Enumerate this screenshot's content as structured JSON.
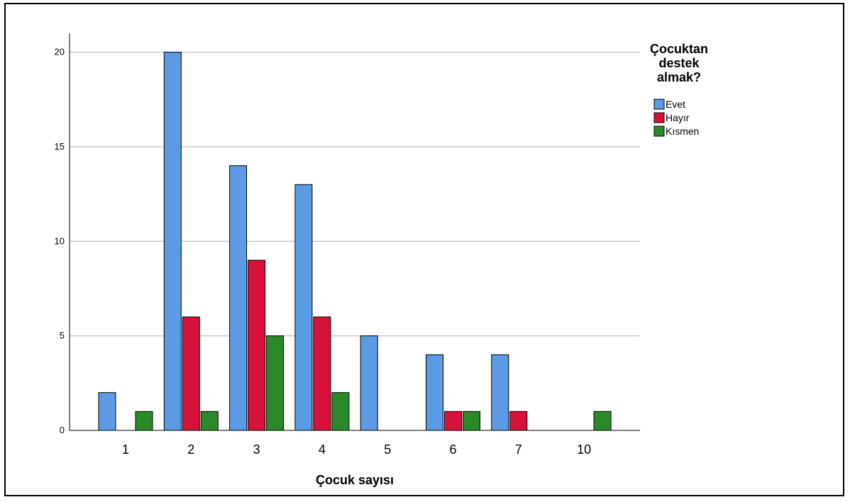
{
  "chart_data": {
    "type": "bar",
    "xlabel": "Çocuk sayısı",
    "ylabel": "",
    "categories": [
      "1",
      "2",
      "3",
      "4",
      "5",
      "6",
      "7",
      "10"
    ],
    "ylim": [
      0,
      21
    ],
    "yticks": [
      0,
      5,
      10,
      15,
      20
    ],
    "grid": true,
    "legend": {
      "title_lines": [
        "Çocuktan",
        "destek",
        "almak?"
      ],
      "placement": "right"
    },
    "series": [
      {
        "name": "Evet",
        "color": "#5b9be6",
        "values": [
          2,
          20,
          14,
          13,
          5,
          4,
          4,
          0
        ]
      },
      {
        "name": "Hayır",
        "color": "#d6123a",
        "values": [
          0,
          6,
          9,
          6,
          0,
          1,
          1,
          0
        ]
      },
      {
        "name": "Kısmen",
        "color": "#2a8a2a",
        "values": [
          1,
          1,
          5,
          2,
          0,
          1,
          0,
          1
        ]
      }
    ]
  }
}
